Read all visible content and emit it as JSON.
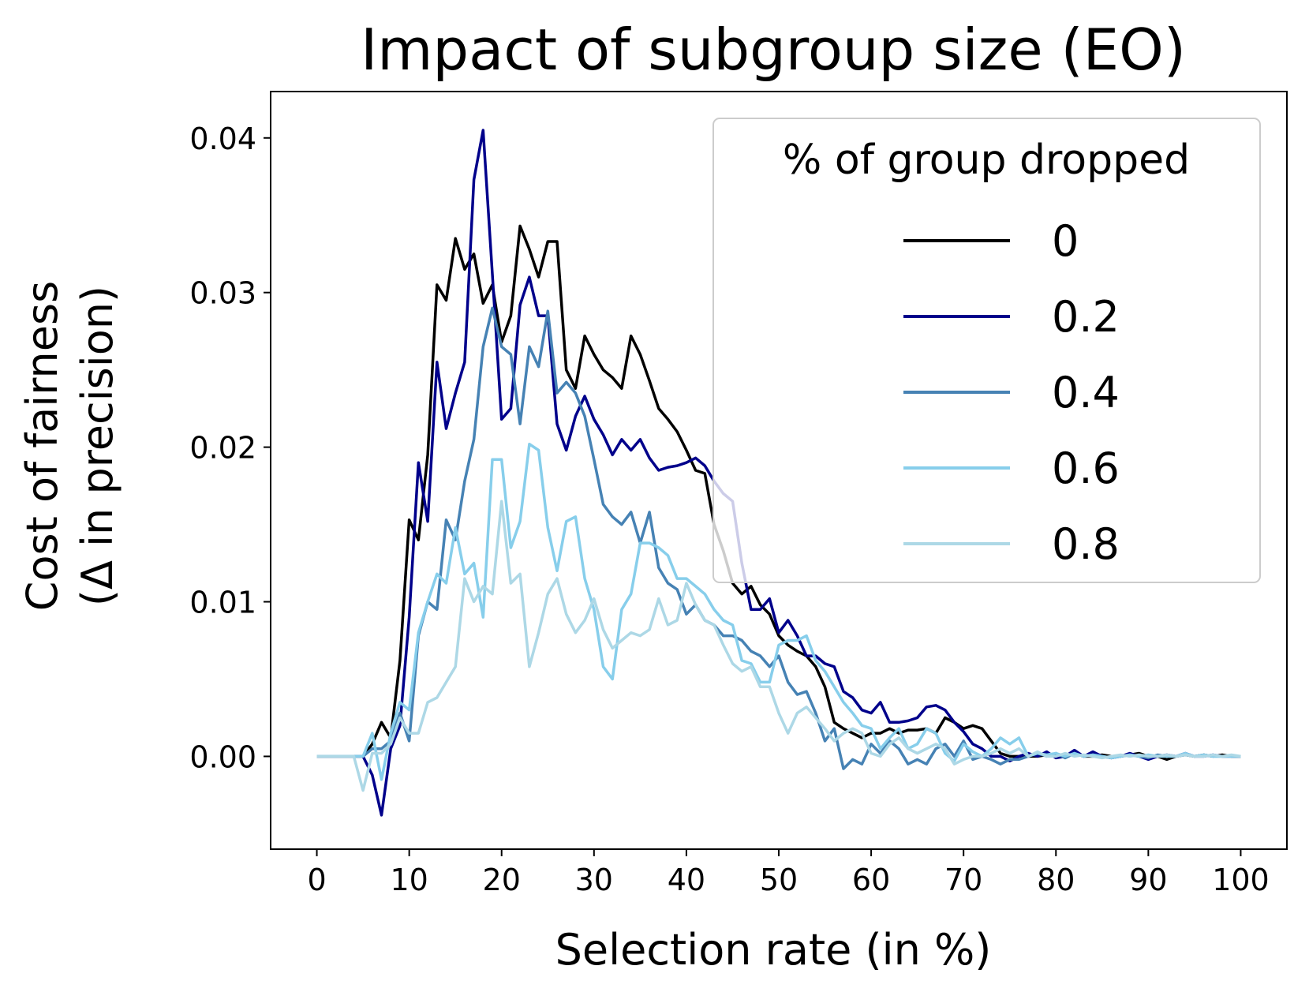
{
  "chart_data": {
    "type": "line",
    "title": "Impact of subgroup size (EO)",
    "xlabel": "Selection rate (in %)",
    "ylabel_line1": "Cost of fairness",
    "ylabel_line2": "(Δ in precision)",
    "xlim": [
      -5,
      105
    ],
    "ylim": [
      -0.006,
      0.043
    ],
    "xticks": [
      0,
      10,
      20,
      30,
      40,
      50,
      60,
      70,
      80,
      90,
      100
    ],
    "xtick_labels": [
      "0",
      "10",
      "20",
      "30",
      "40",
      "50",
      "60",
      "70",
      "80",
      "90",
      "100"
    ],
    "yticks": [
      0.0,
      0.01,
      0.02,
      0.03,
      0.04
    ],
    "ytick_labels": [
      "0.00",
      "0.01",
      "0.02",
      "0.03",
      "0.04"
    ],
    "grid": false,
    "legend": {
      "title": "% of group dropped",
      "placement": "top-right"
    },
    "series": [
      {
        "name": "0",
        "color": "#000000",
        "x": [
          0,
          1,
          2,
          3,
          4,
          5,
          6,
          7,
          8,
          9,
          10,
          11,
          12,
          13,
          14,
          15,
          16,
          17,
          18,
          19,
          20,
          21,
          22,
          23,
          24,
          25,
          26,
          27,
          28,
          29,
          30,
          31,
          32,
          33,
          34,
          35,
          36,
          37,
          38,
          39,
          40,
          41,
          42,
          43,
          44,
          45,
          46,
          47,
          48,
          49,
          50,
          51,
          52,
          53,
          54,
          55,
          56,
          57,
          58,
          59,
          60,
          61,
          62,
          63,
          64,
          65,
          66,
          67,
          68,
          69,
          70,
          71,
          72,
          73,
          74,
          75,
          76,
          77,
          78,
          79,
          80,
          81,
          82,
          83,
          84,
          85,
          86,
          87,
          88,
          89,
          90,
          91,
          92,
          93,
          94,
          95,
          96,
          97,
          98,
          99,
          100
        ],
        "values": [
          0,
          0,
          0,
          0,
          0,
          0,
          0.0008,
          0.0022,
          0.0012,
          0.0062,
          0.0153,
          0.014,
          0.0195,
          0.0305,
          0.0295,
          0.0335,
          0.0315,
          0.0325,
          0.0293,
          0.0305,
          0.0268,
          0.0285,
          0.0343,
          0.0328,
          0.031,
          0.0333,
          0.0333,
          0.025,
          0.0238,
          0.0272,
          0.026,
          0.025,
          0.0245,
          0.0238,
          0.0272,
          0.026,
          0.0243,
          0.0225,
          0.0218,
          0.021,
          0.0198,
          0.0185,
          0.0183,
          0.015,
          0.0133,
          0.0112,
          0.0105,
          0.011,
          0.0098,
          0.0092,
          0.0078,
          0.0072,
          0.0068,
          0.0065,
          0.0058,
          0.0045,
          0.0022,
          0.0018,
          0.0015,
          0.0012,
          0.0015,
          0.0015,
          0.0018,
          0.0015,
          0.0017,
          0.0017,
          0.0018,
          0.0015,
          0.0025,
          0.0022,
          0.0018,
          0.002,
          0.0018,
          0.001,
          0.0002,
          0,
          0,
          0,
          0,
          0.0001,
          0,
          0,
          0.0002,
          0,
          0,
          0.0001,
          0,
          0,
          0.0001,
          0.0002,
          0,
          0,
          -0.0002,
          0,
          0.0001,
          0,
          0.0001,
          0,
          0.0001,
          0,
          0
        ]
      },
      {
        "name": "0.2",
        "color": "#00008b",
        "x": [
          0,
          1,
          2,
          3,
          4,
          5,
          6,
          7,
          8,
          9,
          10,
          11,
          12,
          13,
          14,
          15,
          16,
          17,
          18,
          19,
          20,
          21,
          22,
          23,
          24,
          25,
          26,
          27,
          28,
          29,
          30,
          31,
          32,
          33,
          34,
          35,
          36,
          37,
          38,
          39,
          40,
          41,
          42,
          43,
          44,
          45,
          46,
          47,
          48,
          49,
          50,
          51,
          52,
          53,
          54,
          55,
          56,
          57,
          58,
          59,
          60,
          61,
          62,
          63,
          64,
          65,
          66,
          67,
          68,
          69,
          70,
          71,
          72,
          73,
          74,
          75,
          76,
          77,
          78,
          79,
          80,
          81,
          82,
          83,
          84,
          85,
          86,
          87,
          88,
          89,
          90,
          91,
          92,
          93,
          94,
          95,
          96,
          97,
          98,
          99,
          100
        ],
        "values": [
          0,
          0,
          0,
          0,
          0,
          0,
          -0.0012,
          -0.0038,
          0.0005,
          0.002,
          0.009,
          0.019,
          0.0152,
          0.0255,
          0.0212,
          0.0235,
          0.0255,
          0.0373,
          0.0405,
          0.0312,
          0.0218,
          0.0225,
          0.0292,
          0.031,
          0.0285,
          0.0285,
          0.0215,
          0.0198,
          0.022,
          0.0233,
          0.0218,
          0.0208,
          0.0195,
          0.0205,
          0.0198,
          0.0205,
          0.0193,
          0.0185,
          0.0187,
          0.0188,
          0.019,
          0.0193,
          0.0188,
          0.0178,
          0.017,
          0.0165,
          0.0125,
          0.0095,
          0.0095,
          0.0102,
          0.008,
          0.0088,
          0.0078,
          0.0065,
          0.0065,
          0.006,
          0.0058,
          0.0042,
          0.0038,
          0.003,
          0.0028,
          0.0035,
          0.0022,
          0.0022,
          0.0023,
          0.0025,
          0.0032,
          0.0033,
          0.003,
          0.0022,
          0.0016,
          0.0008,
          0.0005,
          0,
          0,
          -0.0003,
          0,
          0.0002,
          0,
          0.0003,
          -0.0001,
          0,
          0.0004,
          0,
          0.0003,
          0,
          -0.0001,
          0,
          0.0002,
          0,
          -0.0002,
          0,
          0.0001,
          0,
          0.0002,
          0,
          0,
          0.0001,
          0,
          0,
          0
        ]
      },
      {
        "name": "0.4",
        "color": "#4682b4",
        "x": [
          0,
          1,
          2,
          3,
          4,
          5,
          6,
          7,
          8,
          9,
          10,
          11,
          12,
          13,
          14,
          15,
          16,
          17,
          18,
          19,
          20,
          21,
          22,
          23,
          24,
          25,
          26,
          27,
          28,
          29,
          30,
          31,
          32,
          33,
          34,
          35,
          36,
          37,
          38,
          39,
          40,
          41,
          42,
          43,
          44,
          45,
          46,
          47,
          48,
          49,
          50,
          51,
          52,
          53,
          54,
          55,
          56,
          57,
          58,
          59,
          60,
          61,
          62,
          63,
          64,
          65,
          66,
          67,
          68,
          69,
          70,
          71,
          72,
          73,
          74,
          75,
          76,
          77,
          78,
          79,
          80,
          81,
          82,
          83,
          84,
          85,
          86,
          87,
          88,
          89,
          90,
          91,
          92,
          93,
          94,
          95,
          96,
          97,
          98,
          99,
          100
        ],
        "values": [
          0,
          0,
          0,
          0,
          0,
          0,
          0.0005,
          0.0005,
          0.001,
          0.0028,
          0.001,
          0.0078,
          0.01,
          0.0095,
          0.0153,
          0.014,
          0.0178,
          0.0205,
          0.0265,
          0.029,
          0.0265,
          0.026,
          0.0215,
          0.0265,
          0.0252,
          0.0288,
          0.0235,
          0.0242,
          0.0235,
          0.022,
          0.0192,
          0.0163,
          0.0155,
          0.015,
          0.0158,
          0.0138,
          0.0158,
          0.0122,
          0.0112,
          0.0108,
          0.0092,
          0.0098,
          0.0088,
          0.0085,
          0.0078,
          0.0078,
          0.0075,
          0.0068,
          0.0065,
          0.0058,
          0.0065,
          0.0048,
          0.004,
          0.0042,
          0.0028,
          0.001,
          0.0018,
          -0.0008,
          -0.0002,
          -0.0005,
          0.0008,
          0.0002,
          0.001,
          0.0005,
          -0.0005,
          -0.0002,
          -0.0005,
          0.0005,
          0.0008,
          0,
          0.001,
          -0.0002,
          0,
          -0.0002,
          -0.0005,
          -0.0002,
          -0.0002,
          0,
          0.0002,
          0,
          0.0002,
          -0.0001,
          0.0002,
          0,
          0.0001,
          0,
          -0.0001,
          0,
          0.0001,
          0,
          -0.0001,
          0.0001,
          0,
          0,
          0.0001,
          0,
          0.0001,
          0,
          0,
          0,
          0
        ]
      },
      {
        "name": "0.6",
        "color": "#87ceeb",
        "x": [
          0,
          1,
          2,
          3,
          4,
          5,
          6,
          7,
          8,
          9,
          10,
          11,
          12,
          13,
          14,
          15,
          16,
          17,
          18,
          19,
          20,
          21,
          22,
          23,
          24,
          25,
          26,
          27,
          28,
          29,
          30,
          31,
          32,
          33,
          34,
          35,
          36,
          37,
          38,
          39,
          40,
          41,
          42,
          43,
          44,
          45,
          46,
          47,
          48,
          49,
          50,
          51,
          52,
          53,
          54,
          55,
          56,
          57,
          58,
          59,
          60,
          61,
          62,
          63,
          64,
          65,
          66,
          67,
          68,
          69,
          70,
          71,
          72,
          73,
          74,
          75,
          76,
          77,
          78,
          79,
          80,
          81,
          82,
          83,
          84,
          85,
          86,
          87,
          88,
          89,
          90,
          91,
          92,
          93,
          94,
          95,
          96,
          97,
          98,
          99,
          100
        ],
        "values": [
          0,
          0,
          0,
          0,
          0,
          0,
          0.0015,
          -0.0015,
          0.0015,
          0.0035,
          0.003,
          0.008,
          0.01,
          0.0118,
          0.0112,
          0.0148,
          0.0118,
          0.0125,
          0.009,
          0.0192,
          0.0192,
          0.0135,
          0.0152,
          0.0202,
          0.0198,
          0.0148,
          0.012,
          0.0152,
          0.0155,
          0.0115,
          0.0095,
          0.0058,
          0.005,
          0.0095,
          0.0105,
          0.0138,
          0.0138,
          0.0135,
          0.013,
          0.0115,
          0.0115,
          0.011,
          0.0105,
          0.0095,
          0.0088,
          0.0085,
          0.0062,
          0.006,
          0.0048,
          0.0048,
          0.0072,
          0.0075,
          0.0075,
          0.0078,
          0.0062,
          0.0055,
          0.0045,
          0.0035,
          0.0028,
          0.002,
          0.0018,
          0.0005,
          0.0012,
          0.0018,
          0.0005,
          0.0008,
          0.0018,
          0.0015,
          0.0002,
          -0.0003,
          0.0008,
          0.0003,
          0,
          0.0005,
          0.0012,
          0.0008,
          0.0012,
          0,
          0.0002,
          0.0001,
          0.0002,
          0,
          0.0002,
          0,
          0.0001,
          0,
          -0.0001,
          0,
          0.0001,
          0,
          0.0001,
          0,
          0,
          0,
          0.0002,
          0,
          0.0001,
          0,
          0,
          0,
          0
        ]
      },
      {
        "name": "0.8",
        "color": "#add8e6",
        "x": [
          0,
          1,
          2,
          3,
          4,
          5,
          6,
          7,
          8,
          9,
          10,
          11,
          12,
          13,
          14,
          15,
          16,
          17,
          18,
          19,
          20,
          21,
          22,
          23,
          24,
          25,
          26,
          27,
          28,
          29,
          30,
          31,
          32,
          33,
          34,
          35,
          36,
          37,
          38,
          39,
          40,
          41,
          42,
          43,
          44,
          45,
          46,
          47,
          48,
          49,
          50,
          51,
          52,
          53,
          54,
          55,
          56,
          57,
          58,
          59,
          60,
          61,
          62,
          63,
          64,
          65,
          66,
          67,
          68,
          69,
          70,
          71,
          72,
          73,
          74,
          75,
          76,
          77,
          78,
          79,
          80,
          81,
          82,
          83,
          84,
          85,
          86,
          87,
          88,
          89,
          90,
          91,
          92,
          93,
          94,
          95,
          96,
          97,
          98,
          99,
          100
        ],
        "values": [
          0,
          0,
          0,
          0,
          0,
          -0.0022,
          0.0002,
          0.0002,
          0.0008,
          0.0025,
          0.0015,
          0.0015,
          0.0035,
          0.0038,
          0.0048,
          0.0058,
          0.0115,
          0.01,
          0.011,
          0.0105,
          0.0165,
          0.0112,
          0.0118,
          0.0058,
          0.008,
          0.0105,
          0.0115,
          0.0092,
          0.008,
          0.0088,
          0.0102,
          0.0082,
          0.007,
          0.0075,
          0.008,
          0.0078,
          0.0082,
          0.0102,
          0.0085,
          0.0088,
          0.0112,
          0.0098,
          0.0088,
          0.0085,
          0.0072,
          0.006,
          0.0055,
          0.0058,
          0.0045,
          0.0045,
          0.0028,
          0.0015,
          0.0028,
          0.0032,
          0.0025,
          0.0018,
          0.001,
          0.0015,
          0.0018,
          0.0015,
          0.0002,
          0,
          0.0008,
          0.0012,
          0.0005,
          0.0002,
          0.0005,
          0.0008,
          0.0005,
          -0.0005,
          -0.0002,
          0,
          0,
          0.0002,
          0.0005,
          0.0002,
          0.0005,
          0,
          0.0003,
          0,
          0,
          0.0002,
          0,
          0.0001,
          0,
          -0.0001,
          0,
          0.0001,
          0,
          0.0001,
          0,
          0,
          0.0001,
          0,
          0.0001,
          0,
          0,
          0.0001,
          0,
          0.0001,
          0
        ]
      }
    ]
  }
}
